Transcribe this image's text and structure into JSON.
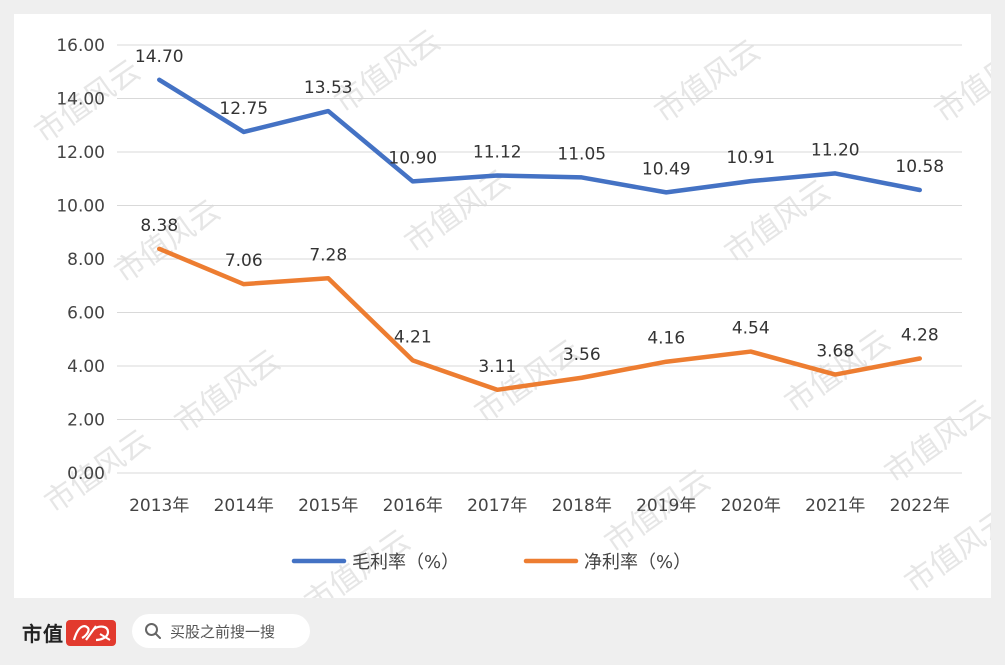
{
  "chart_data": {
    "type": "line",
    "title": "",
    "xlabel": "",
    "ylabel": "",
    "ylim": [
      0,
      16
    ],
    "y_ticks": [
      "0.00",
      "2.00",
      "4.00",
      "6.00",
      "8.00",
      "10.00",
      "12.00",
      "14.00",
      "16.00"
    ],
    "grid": true,
    "legend_position": "bottom",
    "categories": [
      "2013年",
      "2014年",
      "2015年",
      "2016年",
      "2017年",
      "2018年",
      "2019年",
      "2020年",
      "2021年",
      "2022年"
    ],
    "series": [
      {
        "name": "毛利率（%）",
        "color": "#4472c4",
        "values": [
          14.7,
          12.75,
          13.53,
          10.9,
          11.12,
          11.05,
          10.49,
          10.91,
          11.2,
          10.58
        ],
        "labels": [
          "14.70",
          "12.75",
          "13.53",
          "10.90",
          "11.12",
          "11.05",
          "10.49",
          "10.91",
          "11.20",
          "10.58"
        ]
      },
      {
        "name": "净利率（%）",
        "color": "#ed7d31",
        "values": [
          8.38,
          7.06,
          7.28,
          4.21,
          3.11,
          3.56,
          4.16,
          4.54,
          3.68,
          4.28
        ],
        "labels": [
          "8.38",
          "7.06",
          "7.28",
          "4.21",
          "3.11",
          "3.56",
          "4.16",
          "4.54",
          "3.68",
          "4.28"
        ]
      }
    ]
  },
  "watermark": "市值风云",
  "footer": {
    "brand_text": "市值",
    "brand_mark_text": "风云",
    "search_placeholder": "买股之前搜一搜",
    "search_icon": "search-icon"
  }
}
